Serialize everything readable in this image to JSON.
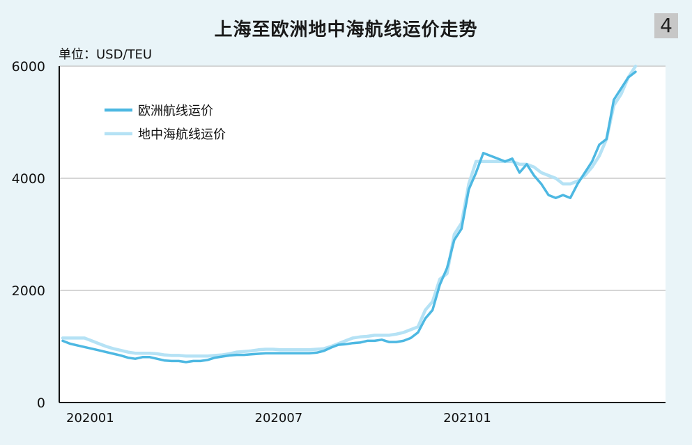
{
  "page": {
    "badge": "4"
  },
  "chart_data": {
    "type": "line",
    "title": "上海至欧洲地中海航线运价走势",
    "unit_label": "单位：USD/TEU",
    "ylim": [
      0,
      6000
    ],
    "y_ticks": [
      0,
      2000,
      4000,
      6000
    ],
    "x_tick_labels": [
      {
        "label": "202001",
        "index": 0
      },
      {
        "label": "202007",
        "index": 26
      },
      {
        "label": "202101",
        "index": 52
      }
    ],
    "grid": true,
    "legend_placement": "top-left",
    "series": [
      {
        "name": "欧洲航线运价",
        "color": "#4db8e2",
        "values": [
          1100,
          1050,
          1020,
          990,
          960,
          930,
          900,
          870,
          840,
          800,
          780,
          810,
          810,
          780,
          750,
          740,
          740,
          720,
          740,
          740,
          760,
          800,
          820,
          840,
          850,
          850,
          860,
          870,
          880,
          880,
          880,
          880,
          880,
          880,
          880,
          890,
          920,
          980,
          1030,
          1040,
          1060,
          1070,
          1100,
          1100,
          1120,
          1080,
          1080,
          1100,
          1150,
          1250,
          1500,
          1650,
          2100,
          2400,
          2900,
          3100,
          3800,
          4100,
          4450,
          4400,
          4350,
          4300,
          4350,
          4100,
          4250,
          4050,
          3900,
          3700,
          3650,
          3700,
          3650,
          3900,
          4100,
          4300,
          4600,
          4700,
          5400,
          5600,
          5800,
          5900
        ]
      },
      {
        "name": "地中海航线运价",
        "color": "#b5e2f5",
        "values": [
          1150,
          1150,
          1150,
          1150,
          1100,
          1050,
          1000,
          960,
          930,
          900,
          880,
          880,
          880,
          870,
          850,
          840,
          840,
          830,
          830,
          830,
          830,
          840,
          850,
          870,
          900,
          910,
          920,
          940,
          950,
          950,
          940,
          940,
          940,
          940,
          940,
          950,
          960,
          1000,
          1050,
          1100,
          1150,
          1170,
          1180,
          1200,
          1200,
          1200,
          1220,
          1250,
          1300,
          1350,
          1650,
          1800,
          2200,
          2300,
          3000,
          3200,
          3900,
          4300,
          4300,
          4300,
          4300,
          4300,
          4300,
          4250,
          4250,
          4200,
          4100,
          4050,
          4000,
          3900,
          3900,
          3950,
          4050,
          4200,
          4400,
          4700,
          5300,
          5500,
          5800,
          6000
        ]
      }
    ]
  }
}
